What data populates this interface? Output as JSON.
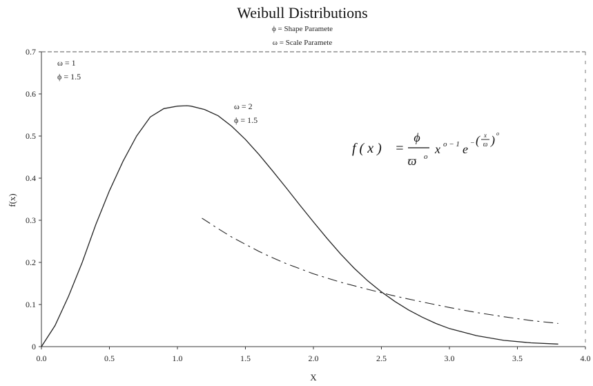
{
  "chart_data": {
    "type": "line",
    "title": "Weibull Distributions",
    "subtitle_lines": [
      "ϕ = Shape Paramete",
      "ω = Scale Paramete"
    ],
    "xlabel": "X",
    "ylabel": "f(x)",
    "xlim": [
      0.0,
      4.0
    ],
    "ylim": [
      0,
      0.7
    ],
    "x_ticks": [
      "0.0",
      "0.5",
      "1.0",
      "1.5",
      "2.0",
      "2.5",
      "3.0",
      "3.5",
      "4.0"
    ],
    "y_ticks": [
      "0",
      "0.1",
      "0.2",
      "0.3",
      "0.4",
      "0.5",
      "0.6",
      "0.7"
    ],
    "grid": false,
    "series": [
      {
        "style": "solid",
        "points": [
          [
            0,
            0
          ],
          [
            0.1,
            0.05
          ],
          [
            0.2,
            0.12
          ],
          [
            0.3,
            0.2
          ],
          [
            0.4,
            0.29
          ],
          [
            0.5,
            0.37
          ],
          [
            0.6,
            0.44
          ],
          [
            0.7,
            0.5
          ],
          [
            0.8,
            0.545
          ],
          [
            0.9,
            0.565
          ],
          [
            1.0,
            0.571
          ],
          [
            1.07,
            0.572
          ],
          [
            1.1,
            0.571
          ],
          [
            1.2,
            0.563
          ],
          [
            1.3,
            0.548
          ],
          [
            1.4,
            0.523
          ],
          [
            1.5,
            0.492
          ],
          [
            1.6,
            0.456
          ],
          [
            1.7,
            0.417
          ],
          [
            1.8,
            0.377
          ],
          [
            1.9,
            0.336
          ],
          [
            2.0,
            0.296
          ],
          [
            2.1,
            0.257
          ],
          [
            2.2,
            0.22
          ],
          [
            2.3,
            0.186
          ],
          [
            2.4,
            0.156
          ],
          [
            2.5,
            0.13
          ],
          [
            2.6,
            0.107
          ],
          [
            2.7,
            0.087
          ],
          [
            2.8,
            0.07
          ],
          [
            2.9,
            0.055
          ],
          [
            3.0,
            0.043
          ],
          [
            3.2,
            0.026
          ],
          [
            3.4,
            0.015
          ],
          [
            3.6,
            0.009
          ],
          [
            3.8,
            0.006
          ]
        ]
      },
      {
        "style": "dashed",
        "points": [
          [
            1.18,
            0.305
          ],
          [
            1.3,
            0.28
          ],
          [
            1.4,
            0.26
          ],
          [
            1.5,
            0.243
          ],
          [
            1.6,
            0.226
          ],
          [
            1.7,
            0.211
          ],
          [
            1.8,
            0.197
          ],
          [
            1.9,
            0.185
          ],
          [
            2.0,
            0.173
          ],
          [
            2.2,
            0.153
          ],
          [
            2.4,
            0.136
          ],
          [
            2.6,
            0.12
          ],
          [
            2.8,
            0.106
          ],
          [
            3.0,
            0.093
          ],
          [
            3.2,
            0.081
          ],
          [
            3.4,
            0.071
          ],
          [
            3.6,
            0.062
          ],
          [
            3.8,
            0.055
          ]
        ]
      }
    ],
    "annotations": [
      {
        "lines": [
          "ω  =  1",
          "ϕ  =  1.5"
        ]
      },
      {
        "lines": [
          "ω  =  2",
          "ϕ  =  1.5"
        ]
      }
    ],
    "formula": {
      "lhs": "f ( x )",
      "eq": "=",
      "num": "ϕ",
      "den": "ϖ",
      "den_exp": "ο",
      "x": "x",
      "x_exp": "ο − 1",
      "e": "e",
      "e_exp_minus": "−",
      "e_exp_num": "x",
      "e_exp_den": "ϖ",
      "e_exp_pow": "ο"
    }
  }
}
